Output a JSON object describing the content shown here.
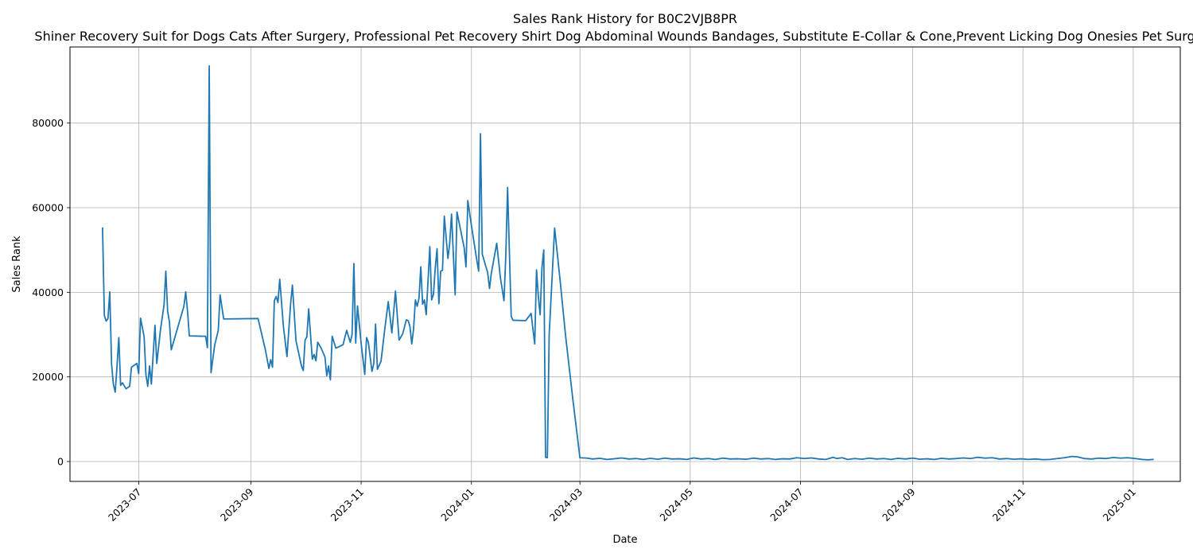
{
  "chart_data": {
    "type": "line",
    "title": "Sales Rank History for B0C2VJB8PR",
    "subtitle": "Shiner Recovery Suit for Dogs Cats After Surgery, Professional Pet Recovery Shirt Dog Abdominal Wounds Bandages, Substitute E-Collar & Cone,Prevent Licking Dog Onesies Pet Surgery",
    "xlabel": "Date",
    "ylabel": "Sales Rank",
    "x_ticks": [
      "2023-07",
      "2023-09",
      "2023-11",
      "2024-01",
      "2024-03",
      "2024-05",
      "2024-07",
      "2024-09",
      "2024-11",
      "2025-01"
    ],
    "y_ticks": [
      "0",
      "20000",
      "40000",
      "60000",
      "80000"
    ],
    "xlim": [
      "2023-05-24",
      "2025-01-27"
    ],
    "ylim": [
      -4700,
      98000
    ],
    "grid": true,
    "color": "#1f77b4",
    "series": [
      {
        "points": [
          [
            "2023-06-11",
            55200
          ],
          [
            "2023-06-12",
            34500
          ],
          [
            "2023-06-13",
            33200
          ],
          [
            "2023-06-14",
            33800
          ],
          [
            "2023-06-15",
            40100
          ],
          [
            "2023-06-16",
            23000
          ],
          [
            "2023-06-17",
            18200
          ],
          [
            "2023-06-18",
            16400
          ],
          [
            "2023-06-19",
            22500
          ],
          [
            "2023-06-20",
            29300
          ],
          [
            "2023-06-21",
            18000
          ],
          [
            "2023-06-22",
            18600
          ],
          [
            "2023-06-24",
            17200
          ],
          [
            "2023-06-26",
            17800
          ],
          [
            "2023-06-27",
            22300
          ],
          [
            "2023-06-30",
            23200
          ],
          [
            "2023-07-01",
            20800
          ],
          [
            "2023-07-02",
            33900
          ],
          [
            "2023-07-04",
            29500
          ],
          [
            "2023-07-05",
            20500
          ],
          [
            "2023-07-06",
            17800
          ],
          [
            "2023-07-07",
            22600
          ],
          [
            "2023-07-08",
            18300
          ],
          [
            "2023-07-10",
            32200
          ],
          [
            "2023-07-11",
            23200
          ],
          [
            "2023-07-13",
            31000
          ],
          [
            "2023-07-15",
            37000
          ],
          [
            "2023-07-16",
            45000
          ],
          [
            "2023-07-17",
            35500
          ],
          [
            "2023-07-18",
            33000
          ],
          [
            "2023-07-19",
            26400
          ],
          [
            "2023-07-26",
            36700
          ],
          [
            "2023-07-27",
            40100
          ],
          [
            "2023-07-28",
            35500
          ],
          [
            "2023-07-29",
            29700
          ],
          [
            "2023-08-07",
            29600
          ],
          [
            "2023-08-08",
            26900
          ],
          [
            "2023-08-09",
            93500
          ],
          [
            "2023-08-10",
            21000
          ],
          [
            "2023-08-12",
            27500
          ],
          [
            "2023-08-14",
            31000
          ],
          [
            "2023-08-15",
            39400
          ],
          [
            "2023-08-17",
            33700
          ],
          [
            "2023-09-05",
            33800
          ],
          [
            "2023-09-09",
            26500
          ],
          [
            "2023-09-11",
            22000
          ],
          [
            "2023-09-12",
            24100
          ],
          [
            "2023-09-13",
            22300
          ],
          [
            "2023-09-14",
            38000
          ],
          [
            "2023-09-15",
            39000
          ],
          [
            "2023-09-16",
            37600
          ],
          [
            "2023-09-17",
            43100
          ],
          [
            "2023-09-19",
            32000
          ],
          [
            "2023-09-21",
            24800
          ],
          [
            "2023-09-23",
            37200
          ],
          [
            "2023-09-24",
            41700
          ],
          [
            "2023-09-26",
            28500
          ],
          [
            "2023-09-29",
            22600
          ],
          [
            "2023-09-30",
            21500
          ],
          [
            "2023-10-01",
            28700
          ],
          [
            "2023-10-02",
            29500
          ],
          [
            "2023-10-03",
            36100
          ],
          [
            "2023-10-05",
            24200
          ],
          [
            "2023-10-06",
            25300
          ],
          [
            "2023-10-07",
            23800
          ],
          [
            "2023-10-08",
            28200
          ],
          [
            "2023-10-10",
            26700
          ],
          [
            "2023-10-12",
            24700
          ],
          [
            "2023-10-13",
            20300
          ],
          [
            "2023-10-14",
            22600
          ],
          [
            "2023-10-15",
            19300
          ],
          [
            "2023-10-16",
            29600
          ],
          [
            "2023-10-18",
            26800
          ],
          [
            "2023-10-22",
            27600
          ],
          [
            "2023-10-24",
            31000
          ],
          [
            "2023-10-26",
            28200
          ],
          [
            "2023-10-27",
            30000
          ],
          [
            "2023-10-28",
            46800
          ],
          [
            "2023-10-29",
            28000
          ],
          [
            "2023-10-30",
            36800
          ],
          [
            "2023-11-01",
            28000
          ],
          [
            "2023-11-03",
            20600
          ],
          [
            "2023-11-04",
            29300
          ],
          [
            "2023-11-05",
            28200
          ],
          [
            "2023-11-07",
            21300
          ],
          [
            "2023-11-08",
            23100
          ],
          [
            "2023-11-09",
            32500
          ],
          [
            "2023-11-10",
            21800
          ],
          [
            "2023-11-12",
            23700
          ],
          [
            "2023-11-14",
            31000
          ],
          [
            "2023-11-16",
            37800
          ],
          [
            "2023-11-18",
            30400
          ],
          [
            "2023-11-20",
            40300
          ],
          [
            "2023-11-22",
            28700
          ],
          [
            "2023-11-24",
            30200
          ],
          [
            "2023-11-26",
            33500
          ],
          [
            "2023-11-27",
            33300
          ],
          [
            "2023-11-28",
            31900
          ],
          [
            "2023-11-29",
            27800
          ],
          [
            "2023-11-30",
            31300
          ],
          [
            "2023-12-01",
            38200
          ],
          [
            "2023-12-02",
            36700
          ],
          [
            "2023-12-03",
            38600
          ],
          [
            "2023-12-04",
            46000
          ],
          [
            "2023-12-05",
            37200
          ],
          [
            "2023-12-06",
            38200
          ],
          [
            "2023-12-07",
            34700
          ],
          [
            "2023-12-09",
            50800
          ],
          [
            "2023-12-10",
            38200
          ],
          [
            "2023-12-11",
            39500
          ],
          [
            "2023-12-12",
            45800
          ],
          [
            "2023-12-13",
            50300
          ],
          [
            "2023-12-14",
            37300
          ],
          [
            "2023-12-15",
            45000
          ],
          [
            "2023-12-16",
            45200
          ],
          [
            "2023-12-17",
            58000
          ],
          [
            "2023-12-19",
            48000
          ],
          [
            "2023-12-20",
            51600
          ],
          [
            "2023-12-21",
            58500
          ],
          [
            "2023-12-23",
            39400
          ],
          [
            "2023-12-24",
            59000
          ],
          [
            "2023-12-28",
            50500
          ],
          [
            "2023-12-29",
            46000
          ],
          [
            "2023-12-30",
            61700
          ],
          [
            "2024-01-01",
            55800
          ],
          [
            "2024-01-04",
            47500
          ],
          [
            "2024-01-05",
            45000
          ],
          [
            "2024-01-06",
            77500
          ],
          [
            "2024-01-07",
            49000
          ],
          [
            "2024-01-10",
            44600
          ],
          [
            "2024-01-11",
            40900
          ],
          [
            "2024-01-12",
            44500
          ],
          [
            "2024-01-15",
            51600
          ],
          [
            "2024-01-17",
            43500
          ],
          [
            "2024-01-19",
            38000
          ],
          [
            "2024-01-20",
            48600
          ],
          [
            "2024-01-21",
            64800
          ],
          [
            "2024-01-23",
            34300
          ],
          [
            "2024-01-24",
            33400
          ],
          [
            "2024-01-31",
            33300
          ],
          [
            "2024-02-03",
            35000
          ],
          [
            "2024-02-05",
            27800
          ],
          [
            "2024-02-06",
            45300
          ],
          [
            "2024-02-07",
            39000
          ],
          [
            "2024-02-08",
            34700
          ],
          [
            "2024-02-09",
            45800
          ],
          [
            "2024-02-10",
            50000
          ],
          [
            "2024-02-11",
            1000
          ],
          [
            "2024-02-12",
            900
          ],
          [
            "2024-02-13",
            30000
          ],
          [
            "2024-02-16",
            55200
          ],
          [
            "2024-02-19",
            43000
          ],
          [
            "2024-02-22",
            30000
          ],
          [
            "2024-02-26",
            15000
          ],
          [
            "2024-03-01",
            900
          ],
          [
            "2024-03-05",
            800
          ],
          [
            "2024-03-08",
            600
          ],
          [
            "2024-03-12",
            750
          ],
          [
            "2024-03-16",
            500
          ],
          [
            "2024-03-20",
            650
          ],
          [
            "2024-03-24",
            850
          ],
          [
            "2024-03-28",
            600
          ],
          [
            "2024-04-01",
            700
          ],
          [
            "2024-04-05",
            500
          ],
          [
            "2024-04-09",
            750
          ],
          [
            "2024-04-13",
            550
          ],
          [
            "2024-04-17",
            800
          ],
          [
            "2024-04-21",
            600
          ],
          [
            "2024-04-25",
            650
          ],
          [
            "2024-04-29",
            500
          ],
          [
            "2024-05-03",
            850
          ],
          [
            "2024-05-07",
            600
          ],
          [
            "2024-05-11",
            700
          ],
          [
            "2024-05-15",
            500
          ],
          [
            "2024-05-19",
            800
          ],
          [
            "2024-05-23",
            600
          ],
          [
            "2024-05-27",
            650
          ],
          [
            "2024-06-01",
            550
          ],
          [
            "2024-06-05",
            800
          ],
          [
            "2024-06-09",
            600
          ],
          [
            "2024-06-13",
            700
          ],
          [
            "2024-06-17",
            500
          ],
          [
            "2024-06-21",
            650
          ],
          [
            "2024-06-25",
            600
          ],
          [
            "2024-06-29",
            900
          ],
          [
            "2024-07-03",
            700
          ],
          [
            "2024-07-07",
            850
          ],
          [
            "2024-07-11",
            600
          ],
          [
            "2024-07-15",
            500
          ],
          [
            "2024-07-19",
            1000
          ],
          [
            "2024-07-21",
            700
          ],
          [
            "2024-07-24",
            900
          ],
          [
            "2024-07-27",
            500
          ],
          [
            "2024-07-31",
            700
          ],
          [
            "2024-08-04",
            550
          ],
          [
            "2024-08-08",
            800
          ],
          [
            "2024-08-12",
            600
          ],
          [
            "2024-08-16",
            700
          ],
          [
            "2024-08-20",
            500
          ],
          [
            "2024-08-24",
            750
          ],
          [
            "2024-08-28",
            600
          ],
          [
            "2024-09-01",
            800
          ],
          [
            "2024-09-05",
            550
          ],
          [
            "2024-09-09",
            650
          ],
          [
            "2024-09-13",
            500
          ],
          [
            "2024-09-17",
            750
          ],
          [
            "2024-09-21",
            600
          ],
          [
            "2024-09-25",
            700
          ],
          [
            "2024-09-29",
            850
          ],
          [
            "2024-10-03",
            700
          ],
          [
            "2024-10-07",
            1000
          ],
          [
            "2024-10-11",
            800
          ],
          [
            "2024-10-15",
            900
          ],
          [
            "2024-10-19",
            600
          ],
          [
            "2024-10-23",
            700
          ],
          [
            "2024-10-27",
            550
          ],
          [
            "2024-10-31",
            650
          ],
          [
            "2024-11-04",
            500
          ],
          [
            "2024-11-08",
            600
          ],
          [
            "2024-11-12",
            450
          ],
          [
            "2024-11-16",
            500
          ],
          [
            "2024-11-20",
            700
          ],
          [
            "2024-11-24",
            900
          ],
          [
            "2024-11-28",
            1200
          ],
          [
            "2024-12-01",
            1100
          ],
          [
            "2024-12-05",
            700
          ],
          [
            "2024-12-09",
            600
          ],
          [
            "2024-12-13",
            800
          ],
          [
            "2024-12-17",
            700
          ],
          [
            "2024-12-21",
            950
          ],
          [
            "2024-12-25",
            800
          ],
          [
            "2024-12-29",
            900
          ],
          [
            "2025-01-02",
            700
          ],
          [
            "2025-01-06",
            500
          ],
          [
            "2025-01-09",
            400
          ],
          [
            "2025-01-12",
            500
          ]
        ]
      }
    ]
  }
}
